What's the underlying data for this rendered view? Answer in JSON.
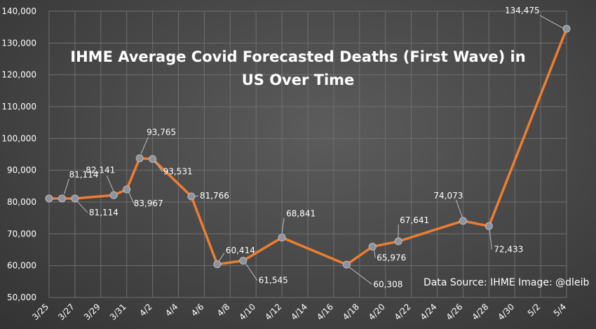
{
  "chart_data": {
    "type": "line",
    "title_lines": [
      "IHME Average Covid Forecasted Deaths (First Wave) in",
      "US Over Time"
    ],
    "source": "Data Source: IHME Image: @dleib",
    "xlabel": "",
    "ylabel": "",
    "ylim": [
      50000,
      140000
    ],
    "yticks": [
      "50,000",
      "60,000",
      "70,000",
      "80,000",
      "90,000",
      "100,000",
      "110,000",
      "120,000",
      "130,000",
      "140,000"
    ],
    "xticks": [
      "3/25",
      "3/27",
      "3/29",
      "3/31",
      "4/2",
      "4/4",
      "4/6",
      "4/8",
      "4/10",
      "4/12",
      "4/14",
      "4/16",
      "4/18",
      "4/20",
      "4/22",
      "4/24",
      "4/26",
      "4/28",
      "4/30",
      "5/2",
      "5/4"
    ],
    "grid": true,
    "line_color": "#ed7d31",
    "marker_color": "#8e929c",
    "series": [
      {
        "x": [
          "3/25",
          "3/26",
          "3/27",
          "3/30",
          "3/31",
          "4/1",
          "4/2",
          "4/5",
          "4/7",
          "4/9",
          "4/12",
          "4/17",
          "4/19",
          "4/21",
          "4/26",
          "4/28",
          "5/4"
        ],
        "values": [
          81114,
          81114,
          81114,
          82141,
          83967,
          93765,
          93531,
          81766,
          60414,
          61545,
          68841,
          60308,
          65976,
          67641,
          74073,
          72433,
          134475
        ],
        "labels": [
          "",
          "81,114",
          "81,114",
          "82,141",
          "83,967",
          "93,765",
          "93,531",
          "81,766",
          "60,414",
          "61,545",
          "68,841",
          "60,308",
          "65,976",
          "67,641",
          "74,073",
          "72,433",
          "134,475"
        ]
      }
    ]
  }
}
